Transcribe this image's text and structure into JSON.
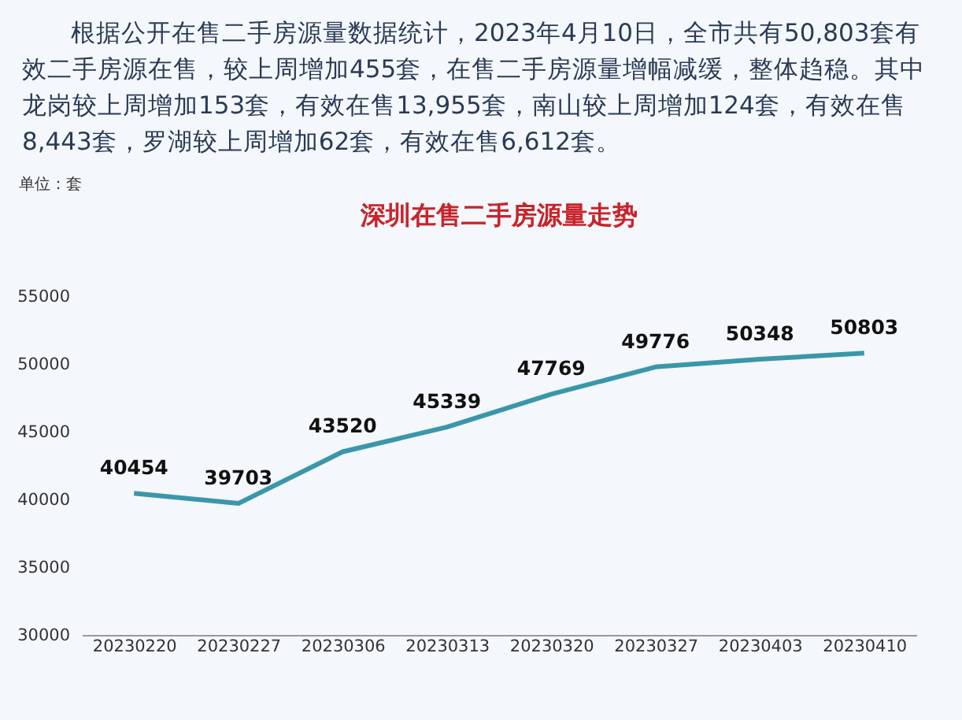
{
  "chart_data": {
    "type": "line",
    "title": "深圳在售二手房源量走势",
    "annotations": [
      "根据公开在售二手房源量数据统计，2023年4月10日，全市共有50,803套有效二手房源在售，较上周增加455套，在售二手房源量增幅减缓，整体趋稳。其中龙岗较上周增加153套，有效在售13,955套，南山较上周增加124套，有效在售8,443套，罗湖较上周增加62套，有效在售6,612套。",
      "单位：套"
    ],
    "categories": [
      "20230220",
      "20230227",
      "20230306",
      "20230313",
      "20230320",
      "20230327",
      "20230403",
      "20230410"
    ],
    "series": [
      {
        "color": "#3a97a9",
        "values": [
          40454,
          39703,
          43520,
          45339,
          47769,
          49776,
          50348,
          50803
        ]
      }
    ],
    "ylim": [
      30000,
      55000
    ],
    "yticks": [
      30000,
      35000,
      40000,
      45000,
      50000,
      55000
    ],
    "grid": false,
    "data_labels": true,
    "marker": "none",
    "line_style": "solid"
  }
}
